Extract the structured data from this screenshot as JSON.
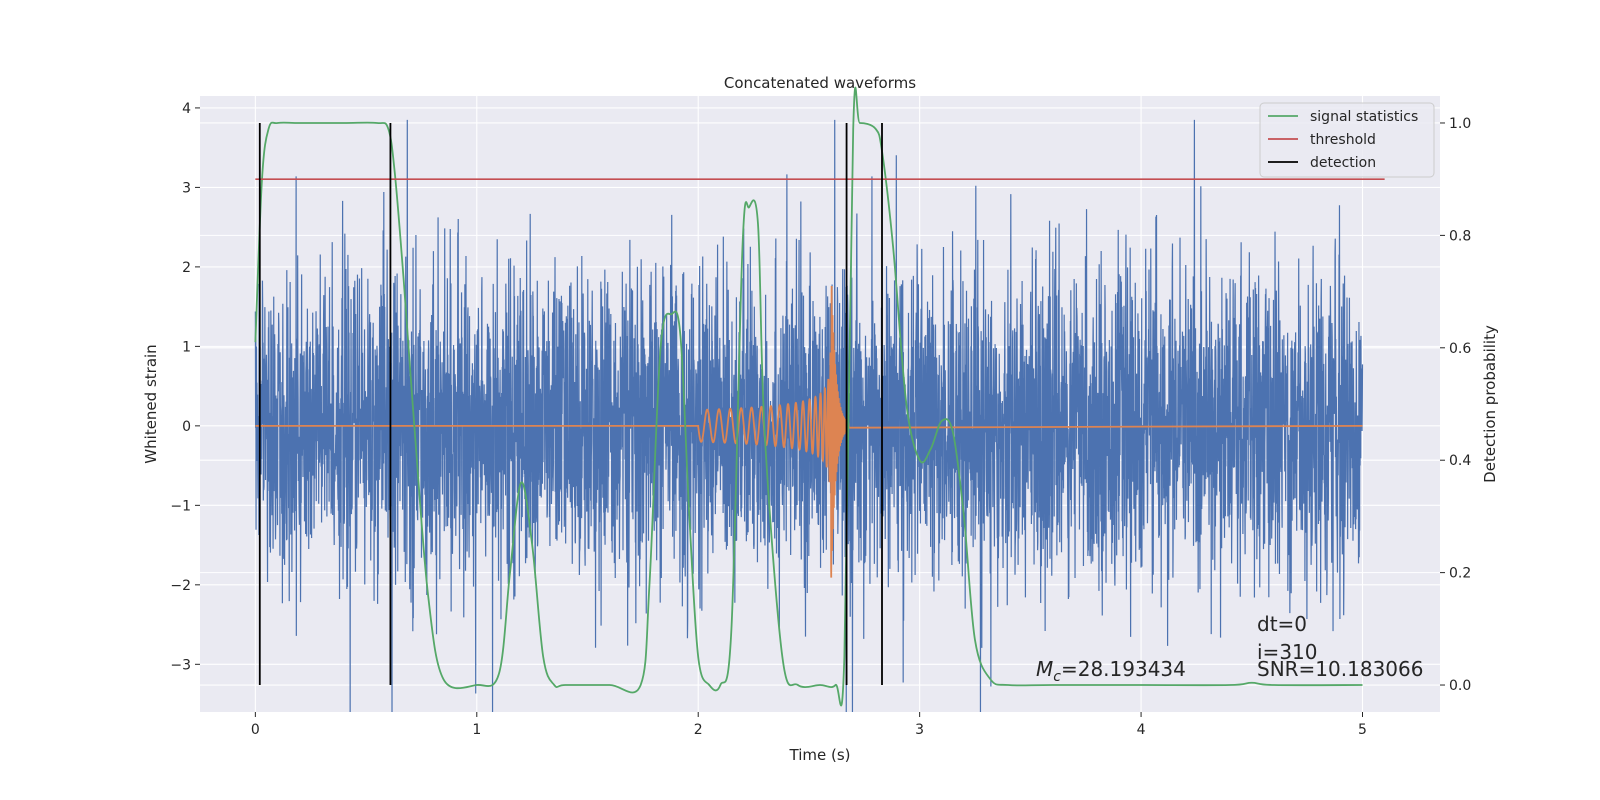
{
  "chart_data": {
    "type": "line",
    "title": "Concatenated waveforms",
    "xlabel": "Time (s)",
    "ylabel": "Whitened strain",
    "y2label": "Detection probability",
    "xlim": [
      -0.25,
      5.35
    ],
    "ylim": [
      -3.6,
      4.15
    ],
    "y2lim": [
      -0.048,
      1.048
    ],
    "xticks": [
      "0",
      "1",
      "2",
      "3",
      "4",
      "5"
    ],
    "yticks": [
      "4",
      "3",
      "2",
      "1",
      "0",
      "−1",
      "−2",
      "−3"
    ],
    "y2ticks": [
      "1.0",
      "0.8",
      "0.6",
      "0.4",
      "0.2",
      "0.0"
    ],
    "grid": true,
    "legend_position": "top-right",
    "legend": [
      "signal statistics",
      "threshold",
      "detection"
    ],
    "colors": {
      "strain": "#4c72b0",
      "waveform": "#dd8452",
      "signal_statistics": "#55a868",
      "threshold": "#c44e52",
      "detection": "#000000",
      "background": "#eaeaf2",
      "grid": "#ffffff"
    },
    "series": [
      {
        "name": "",
        "axis": "left",
        "role": "whitened strain noise",
        "x_range": [
          0,
          5
        ],
        "amplitude_typical": 1.3,
        "peak_max": 3.85,
        "peak_min": -3.6
      },
      {
        "name": "",
        "axis": "left",
        "role": "injected chirp",
        "x_start": 2.0,
        "x_merger": 2.6,
        "x_end": 2.68,
        "peak_amplitude": 2.0
      },
      {
        "name": "signal statistics",
        "axis": "right",
        "x": [
          0.0,
          0.03,
          0.06,
          0.1,
          0.2,
          0.4,
          0.55,
          0.6,
          0.63,
          0.67,
          0.72,
          0.78,
          0.85,
          1.0,
          1.1,
          1.15,
          1.2,
          1.25,
          1.3,
          1.35,
          1.4,
          1.6,
          1.74,
          1.78,
          1.83,
          1.88,
          1.92,
          1.96,
          2.0,
          2.05,
          2.1,
          2.15,
          2.2,
          2.23,
          2.27,
          2.3,
          2.38,
          2.45,
          2.55,
          2.62,
          2.66,
          2.7,
          2.73,
          2.8,
          2.83,
          2.88,
          2.94,
          3.0,
          3.05,
          3.1,
          3.15,
          3.2,
          3.25,
          3.32,
          3.4,
          3.6,
          4.0,
          4.4,
          4.5,
          4.6,
          5.0
        ],
        "y": [
          0.61,
          0.9,
          0.99,
          1.0,
          1.0,
          1.0,
          1.0,
          0.99,
          0.91,
          0.72,
          0.45,
          0.16,
          0.01,
          0.0,
          0.02,
          0.2,
          0.36,
          0.25,
          0.05,
          0.0,
          0.0,
          0.0,
          0.0,
          0.18,
          0.6,
          0.66,
          0.62,
          0.3,
          0.05,
          0.0,
          0.0,
          0.1,
          0.78,
          0.85,
          0.82,
          0.45,
          0.05,
          0.0,
          0.0,
          0.0,
          0.05,
          0.99,
          1.0,
          0.99,
          0.95,
          0.78,
          0.5,
          0.4,
          0.42,
          0.47,
          0.45,
          0.3,
          0.08,
          0.01,
          0.0,
          0.0,
          0.0,
          0.0,
          0.004,
          0.0,
          0.0
        ]
      },
      {
        "name": "threshold",
        "axis": "right",
        "x": [
          0.0,
          5.1
        ],
        "y": [
          0.9,
          0.9
        ]
      }
    ],
    "detections_x": [
      0.02,
      0.61,
      2.67,
      2.83
    ],
    "annotations": {
      "dt": "dt=0",
      "i": "i=310",
      "snr": "SNR=10.183066",
      "mc_symbol": "M",
      "mc_sub": "c",
      "mc_value": "=28.193434"
    }
  }
}
